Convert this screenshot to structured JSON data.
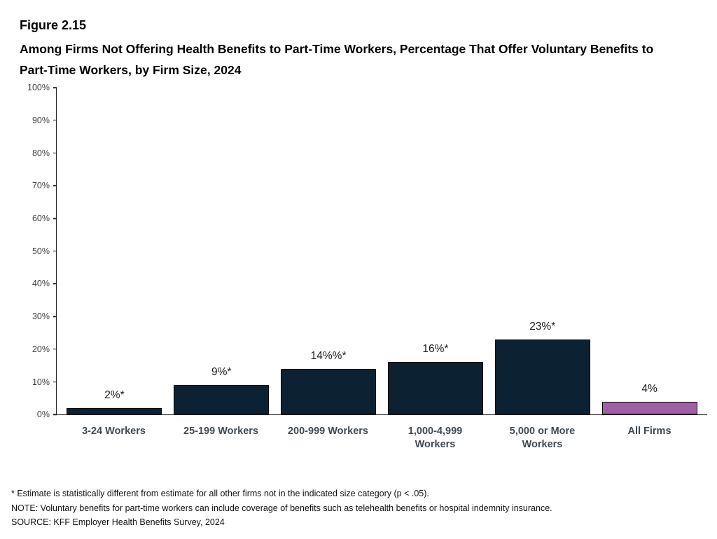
{
  "figure": {
    "label": "Figure 2.15",
    "title": "Among Firms Not Offering Health Benefits to Part-Time Workers, Percentage That Offer Voluntary Benefits to Part-Time Workers, by Firm Size, 2024"
  },
  "chart_data": {
    "type": "bar",
    "title": "Among Firms Not Offering Health Benefits to Part-Time Workers, Percentage That Offer Voluntary Benefits to Part-Time Workers, by Firm Size, 2024",
    "categories": [
      "3-24 Workers",
      "25-199 Workers",
      "200-999 Workers",
      "1,000-4,999 Workers",
      "5,000 or More Workers",
      "All Firms"
    ],
    "values": [
      2,
      9,
      14,
      16,
      23,
      4
    ],
    "value_labels": [
      "2%*",
      "9%*",
      "14%%*",
      "16%*",
      "23%*",
      "4%"
    ],
    "xlabel": "",
    "ylabel": "",
    "ylim": [
      0,
      100
    ],
    "ytick_step": 10,
    "ytick_suffix": "%",
    "grid": false,
    "legend": "none",
    "bar_color_default": "#0c2233",
    "bar_color_highlight": "#a15fa8",
    "bar_border_color": "#060606",
    "highlight_index": 5
  },
  "footnotes": {
    "asterisk": "* Estimate is statistically different from estimate for all other firms not in the indicated size category (p < .05).",
    "note": "NOTE: Voluntary benefits for part-time workers can include coverage of benefits such as telehealth benefits or hospital indemnity insurance.",
    "source": "SOURCE: KFF Employer Health Benefits Survey, 2024"
  }
}
